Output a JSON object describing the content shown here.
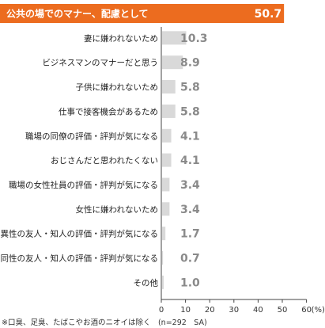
{
  "chart_data": {
    "type": "bar",
    "orientation": "horizontal",
    "categories": [
      "公共の場でのマナー、配慮として",
      "妻に嫌われないため",
      "ビジネスマンのマナーだと思う",
      "子供に嫌われないため",
      "仕事で接客機会があるため",
      "職場の同僚の評価・評判が気になる",
      "おじさんだと思われたくない",
      "職場の女性社員の評価・評判が気になる",
      "女性に嫌われないため",
      "異性の友人・知人の評価・評判が気になる",
      "同性の友人・知人の評価・評判が気になる",
      "その他"
    ],
    "values": [
      50.7,
      10.3,
      8.9,
      5.8,
      5.8,
      4.1,
      4.1,
      3.4,
      3.4,
      1.7,
      0.7,
      1.0
    ],
    "value_labels": [
      "50.7",
      "10.3",
      "8.9",
      "5.8",
      "5.8",
      "4.1",
      "4.1",
      "3.4",
      "3.4",
      "1.7",
      "0.7",
      "1.0"
    ],
    "xlim": [
      0,
      60
    ],
    "xticks": [
      0,
      10,
      20,
      30,
      40,
      50,
      60
    ],
    "x_unit": "(%)",
    "note": "※口臭、足臭、たばこやお酒のニオイは除く　(n=292　SA)",
    "highlight_index": 0,
    "colors": {
      "highlight": "#ec6c1f",
      "bar": "#d9d9d9",
      "axis": "#444444"
    }
  }
}
